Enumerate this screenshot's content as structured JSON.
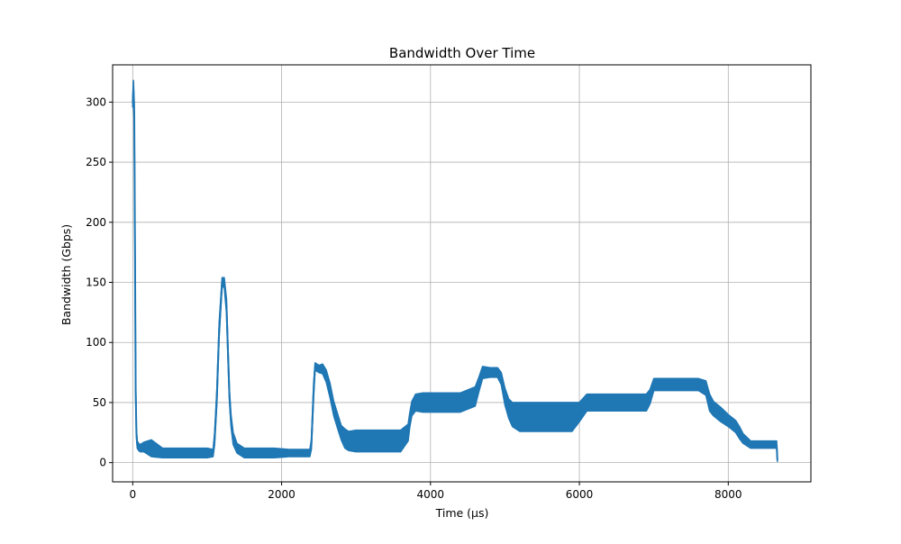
{
  "chart_data": {
    "type": "line",
    "title": "Bandwidth Over Time",
    "xlabel": "Time (µs)",
    "ylabel": "Bandwidth (Gbps)",
    "xlim": [
      -270,
      9110
    ],
    "ylim": [
      -16,
      331
    ],
    "xticks": [
      0,
      2000,
      4000,
      6000,
      8000
    ],
    "yticks": [
      0,
      50,
      100,
      150,
      200,
      250,
      300
    ],
    "grid": true,
    "legend": "none",
    "colors": {
      "line": "#1f77b4",
      "grid": "#b0b0b0",
      "axes": "#000000",
      "background": "#ffffff"
    },
    "series": [
      {
        "x": [
          0,
          10,
          20,
          30,
          40,
          50,
          60,
          80,
          100,
          150,
          250,
          400,
          600,
          800,
          1000,
          1080,
          1100,
          1130,
          1160,
          1200,
          1230,
          1260,
          1280,
          1300,
          1320,
          1350,
          1400,
          1500,
          1700,
          1900,
          2100,
          2300,
          2380,
          2400,
          2430,
          2450,
          2500,
          2550,
          2600,
          2650,
          2700,
          2750,
          2800,
          2850,
          2900,
          3000,
          3200,
          3400,
          3600,
          3700,
          3720,
          3750,
          3800,
          3900,
          4000,
          4200,
          4400,
          4600,
          4650,
          4700,
          4800,
          4900,
          4950,
          5000,
          5050,
          5100,
          5200,
          5400,
          5600,
          5800,
          5900,
          6000,
          6100,
          6300,
          6500,
          6700,
          6900,
          6950,
          7000,
          7200,
          7400,
          7600,
          7700,
          7750,
          7800,
          7900,
          8000,
          8100,
          8150,
          8200,
          8300,
          8400,
          8500,
          8600,
          8650,
          8660
        ],
        "values": [
          300,
          310,
          290,
          180,
          60,
          25,
          15,
          13,
          12,
          13,
          12,
          8,
          8,
          8,
          8,
          8,
          20,
          55,
          110,
          150,
          150,
          130,
          90,
          55,
          35,
          20,
          12,
          8,
          8,
          8,
          8,
          8,
          8,
          15,
          60,
          80,
          78,
          78,
          72,
          60,
          45,
          35,
          25,
          20,
          18,
          18,
          18,
          18,
          18,
          25,
          35,
          45,
          50,
          50,
          50,
          50,
          50,
          55,
          65,
          75,
          75,
          75,
          70,
          55,
          45,
          40,
          38,
          38,
          38,
          38,
          38,
          42,
          50,
          50,
          50,
          50,
          50,
          55,
          65,
          65,
          65,
          65,
          62,
          50,
          45,
          40,
          35,
          30,
          25,
          20,
          15,
          15,
          15,
          15,
          15,
          2
        ],
        "band": [
          4,
          8,
          10,
          8,
          6,
          4,
          3,
          3,
          3,
          4,
          7,
          4,
          4,
          4,
          4,
          3,
          5,
          6,
          6,
          4,
          4,
          6,
          6,
          5,
          5,
          5,
          4,
          4,
          4,
          4,
          3,
          3,
          3,
          4,
          6,
          3,
          3,
          4,
          5,
          6,
          6,
          6,
          6,
          8,
          8,
          9,
          9,
          9,
          9,
          7,
          6,
          6,
          7,
          8,
          8,
          8,
          8,
          8,
          6,
          5,
          4,
          4,
          5,
          7,
          8,
          10,
          12,
          12,
          12,
          12,
          12,
          8,
          7,
          7,
          7,
          7,
          7,
          6,
          5,
          5,
          5,
          5,
          6,
          7,
          6,
          6,
          5,
          5,
          5,
          4,
          3,
          3,
          3,
          3,
          3,
          1
        ]
      }
    ]
  }
}
